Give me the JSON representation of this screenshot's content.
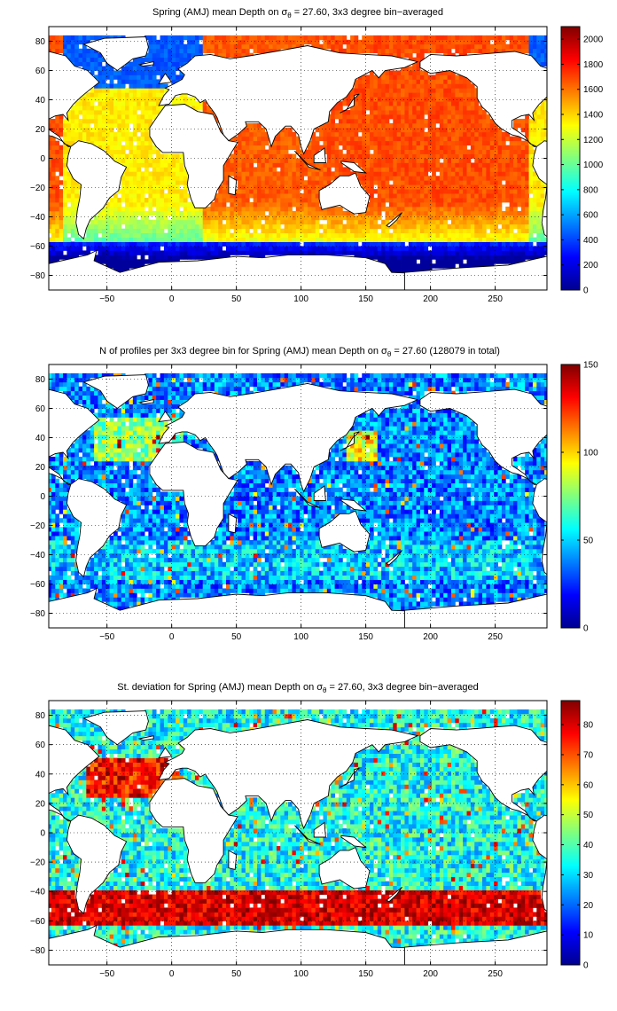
{
  "chart_data": [
    {
      "type": "heatmap",
      "title_pre": "Spring (AMJ) mean Depth on ",
      "title_sym": "σ",
      "title_sub": "θ",
      "title_post": " = 27.60, 3x3 degree bin−averaged",
      "xlabel": "",
      "ylabel": "",
      "xlim": [
        -95,
        290
      ],
      "ylim": [
        -90,
        90
      ],
      "x_ticks": [
        -50,
        0,
        50,
        100,
        150,
        200,
        250
      ],
      "y_ticks": [
        80,
        60,
        40,
        20,
        0,
        -20,
        -40,
        -60,
        -80
      ],
      "colorbar": {
        "min": 0,
        "max": 2100,
        "ticks": [
          0,
          200,
          400,
          600,
          800,
          1000,
          1200,
          1400,
          1600,
          1800,
          2000
        ]
      },
      "field": "depth",
      "grid": true
    },
    {
      "type": "heatmap",
      "title_pre": "N of profiles per 3x3 degree bin for Spring (AMJ) mean Depth on ",
      "title_sym": "σ",
      "title_sub": "θ",
      "title_post": " = 27.60 (128079 in total)",
      "xlabel": "",
      "ylabel": "",
      "xlim": [
        -95,
        290
      ],
      "ylim": [
        -90,
        90
      ],
      "x_ticks": [
        -50,
        0,
        50,
        100,
        150,
        200,
        250
      ],
      "y_ticks": [
        80,
        60,
        40,
        20,
        0,
        -20,
        -40,
        -60,
        -80
      ],
      "colorbar": {
        "min": 0,
        "max": 150,
        "ticks": [
          0,
          50,
          100,
          150
        ]
      },
      "field": "count",
      "grid": true
    },
    {
      "type": "heatmap",
      "title_pre": "St. deviation for Spring (AMJ) mean Depth on ",
      "title_sym": "σ",
      "title_sub": "θ",
      "title_post": " = 27.60, 3x3 degree bin−averaged",
      "xlabel": "",
      "ylabel": "",
      "xlim": [
        -95,
        290
      ],
      "ylim": [
        -90,
        90
      ],
      "x_ticks": [
        -50,
        0,
        50,
        100,
        150,
        200,
        250
      ],
      "y_ticks": [
        80,
        60,
        40,
        20,
        0,
        -20,
        -40,
        -60,
        -80
      ],
      "colorbar": {
        "min": 0,
        "max": 88,
        "ticks": [
          0,
          10,
          20,
          30,
          40,
          50,
          60,
          70,
          80
        ]
      },
      "field": "std",
      "grid": true
    }
  ]
}
